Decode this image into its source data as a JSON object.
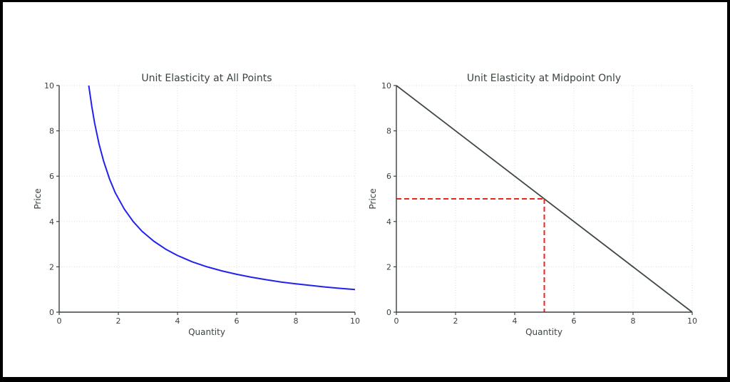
{
  "figure": {
    "background_color": "#ffffff",
    "frame_color": "#000000"
  },
  "style": {
    "axis_color": "#3a423b",
    "grid_color": "#dbdbdb",
    "text_color": "#3b453c"
  },
  "chart_data": [
    {
      "type": "line",
      "title": "Unit Elasticity at All Points",
      "xlabel": "Quantity",
      "ylabel": "Price",
      "xlim": [
        0,
        10
      ],
      "ylim": [
        0,
        10
      ],
      "xticks": [
        0,
        2,
        4,
        6,
        8,
        10
      ],
      "yticks": [
        0,
        2,
        4,
        6,
        8,
        10
      ],
      "grid": true,
      "grid_style": "dotted",
      "legend": "none",
      "series": [
        {
          "name": "unit-elastic demand curve P = 10/Q",
          "color": "#2222ee",
          "line_style": "solid",
          "line_width": 2,
          "x": [
            1,
            1.1,
            1.2,
            1.35,
            1.5,
            1.7,
            1.9,
            2.2,
            2.5,
            2.8,
            3.2,
            3.6,
            4,
            4.5,
            5,
            5.5,
            6,
            6.5,
            7,
            7.5,
            8,
            8.5,
            9,
            9.5,
            10
          ],
          "y": [
            10,
            9.09,
            8.33,
            7.41,
            6.67,
            5.88,
            5.26,
            4.55,
            4,
            3.57,
            3.13,
            2.78,
            2.5,
            2.22,
            2,
            1.82,
            1.67,
            1.54,
            1.43,
            1.33,
            1.25,
            1.18,
            1.11,
            1.05,
            1
          ]
        }
      ]
    },
    {
      "type": "line",
      "title": "Unit Elasticity at Midpoint Only",
      "xlabel": "Quantity",
      "ylabel": "Price",
      "xlim": [
        0,
        10
      ],
      "ylim": [
        0,
        10
      ],
      "xticks": [
        0,
        2,
        4,
        6,
        8,
        10
      ],
      "yticks": [
        0,
        2,
        4,
        6,
        8,
        10
      ],
      "grid": true,
      "grid_style": "dotted",
      "legend": "none",
      "midpoint": {
        "quantity": 5,
        "price": 5
      },
      "series": [
        {
          "name": "linear demand curve",
          "color": "#3f4a40",
          "line_style": "solid",
          "line_width": 1.8,
          "x": [
            0,
            10
          ],
          "y": [
            10,
            0
          ]
        },
        {
          "name": "midpoint horizontal guide",
          "color": "#e8271f",
          "line_style": "dashed",
          "line_width": 2,
          "x": [
            0,
            5
          ],
          "y": [
            5,
            5
          ]
        },
        {
          "name": "midpoint vertical guide",
          "color": "#e8271f",
          "line_style": "dashed",
          "line_width": 2,
          "x": [
            5,
            5
          ],
          "y": [
            5,
            0
          ]
        }
      ]
    }
  ]
}
